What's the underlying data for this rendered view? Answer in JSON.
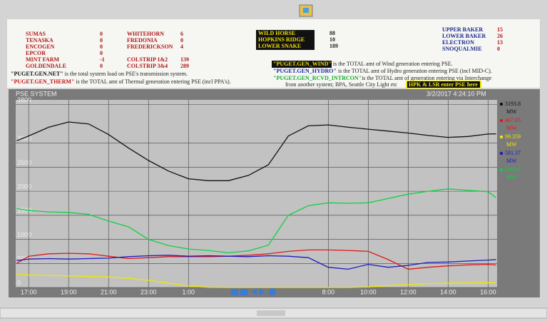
{
  "header": {
    "columns": [
      [
        {
          "name": "SUMAS",
          "value": "0"
        },
        {
          "name": "TENASKA",
          "value": "0"
        },
        {
          "name": "ENCOGEN",
          "value": "0"
        },
        {
          "name": "EPCOR",
          "value": "0"
        },
        {
          "name": "MINT FARM",
          "value": "-1"
        },
        {
          "name": "GOLDENDALE",
          "value": "0"
        }
      ],
      [
        {
          "name": "WHITEHORN",
          "value": "6"
        },
        {
          "name": "FREDONIA",
          "value": "0"
        },
        {
          "name": "FREDERICKSON",
          "value": "4"
        },
        {
          "name": "COLSTRIP 1&2",
          "value": "139"
        },
        {
          "name": "COLSTRIP 3&4",
          "value": "289"
        }
      ],
      [
        {
          "name": "WILD HORSE",
          "value": "88"
        },
        {
          "name": "HOPKINS RIDGE",
          "value": "10"
        },
        {
          "name": "LOWER SNAKE",
          "value": "189"
        }
      ],
      [
        {
          "name": "UPPER BAKER",
          "value": "15"
        },
        {
          "name": "LOWER BAKER",
          "value": "26"
        },
        {
          "name": "ELECTRON",
          "value": "13"
        },
        {
          "name": "SNOQUALMIE",
          "value": "0"
        }
      ]
    ],
    "notes": [
      {
        "code": "\"PUGET.GEN.NET\"",
        "text": " is the total system load on PSE's transmission system."
      },
      {
        "code": "\"PUGET.GEN_THERM\"",
        "text": " is the TOTAL amt of Thermal generation entering PSE (incl PPA's)."
      },
      {
        "code": "\"PUGET.GEN_WIND\"",
        "text": " is the TOTAL amt of Wind generation entering PSE."
      },
      {
        "code": "\"PUGET.GEN_HYDRO\"",
        "text": " is the TOTAL amt of Hydro generation entering PSE (incl MID-C)."
      },
      {
        "code": "\"PUGET.GEN_RCVD_INTRCON\"",
        "text": "is the TOTAL amt of generation entering via Interchange"
      }
    ],
    "note_continuation": "from another system; BPA, Seattle City Light etc",
    "highlight": "HPK & LSR enter PSE here"
  },
  "chart_data": {
    "type": "line",
    "title": "PSE SYSTEM",
    "timestamp": "3/2/2017 4:24:10 PM",
    "unit": "MW",
    "x": [
      -0.6,
      0,
      1,
      2,
      3,
      4,
      5,
      6,
      7,
      8,
      9,
      10,
      11,
      12,
      13,
      14,
      15,
      16,
      17,
      18,
      19,
      20,
      21,
      22,
      23,
      23.4
    ],
    "xlim": [
      -0.65,
      23.45
    ],
    "xticks": [
      {
        "value": 0,
        "label": "17:00"
      },
      {
        "value": 2,
        "label": "19:00"
      },
      {
        "value": 4,
        "label": "21:00"
      },
      {
        "value": 6,
        "label": "23:00"
      },
      {
        "value": 8,
        "label": "1:00"
      },
      {
        "value": 15,
        "label": "8:00"
      },
      {
        "value": 17,
        "label": "10:00"
      },
      {
        "value": 19,
        "label": "12:00"
      },
      {
        "value": 21,
        "label": "14:00"
      },
      {
        "value": 23,
        "label": "16:00"
      }
    ],
    "ylim": [
      0,
      3900
    ],
    "yticks": [
      0,
      500,
      1000,
      1500,
      2000,
      2500,
      3000,
      3800
    ],
    "grid": true,
    "series": [
      {
        "color": "#111111",
        "legend_value": 3193.8,
        "values": [
          3050,
          3150,
          3330,
          3440,
          3400,
          3180,
          2900,
          2640,
          2420,
          2260,
          2220,
          2220,
          2330,
          2550,
          3150,
          3360,
          3380,
          3330,
          3290,
          3250,
          3210,
          3160,
          3120,
          3140,
          3190,
          3193.8
        ]
      },
      {
        "color": "#e01818",
        "legend_value": 467.65,
        "values": [
          500,
          650,
          700,
          710,
          700,
          650,
          600,
          620,
          640,
          640,
          640,
          650,
          670,
          700,
          750,
          780,
          780,
          770,
          750,
          580,
          380,
          420,
          450,
          470,
          480,
          467.65
        ]
      },
      {
        "color": "#f0e800",
        "legend_value": 99.359,
        "values": [
          270,
          260,
          250,
          240,
          230,
          220,
          190,
          150,
          90,
          30,
          5,
          0,
          0,
          0,
          0,
          0,
          0,
          0,
          10,
          40,
          60,
          80,
          90,
          95,
          100,
          99.359
        ]
      },
      {
        "color": "#1c1cc0",
        "legend_value": 581.37,
        "values": [
          560,
          590,
          600,
          590,
          600,
          610,
          640,
          660,
          670,
          650,
          660,
          650,
          640,
          660,
          650,
          620,
          420,
          380,
          480,
          420,
          460,
          520,
          530,
          550,
          570,
          581.37
        ]
      },
      {
        "color": "#12d040",
        "legend_value": 1865.6,
        "values": [
          1640,
          1600,
          1570,
          1560,
          1520,
          1380,
          1260,
          1000,
          870,
          800,
          770,
          720,
          760,
          880,
          1500,
          1700,
          1760,
          1750,
          1760,
          1850,
          1940,
          2000,
          2050,
          2020,
          1990,
          1865.6
        ]
      }
    ]
  }
}
